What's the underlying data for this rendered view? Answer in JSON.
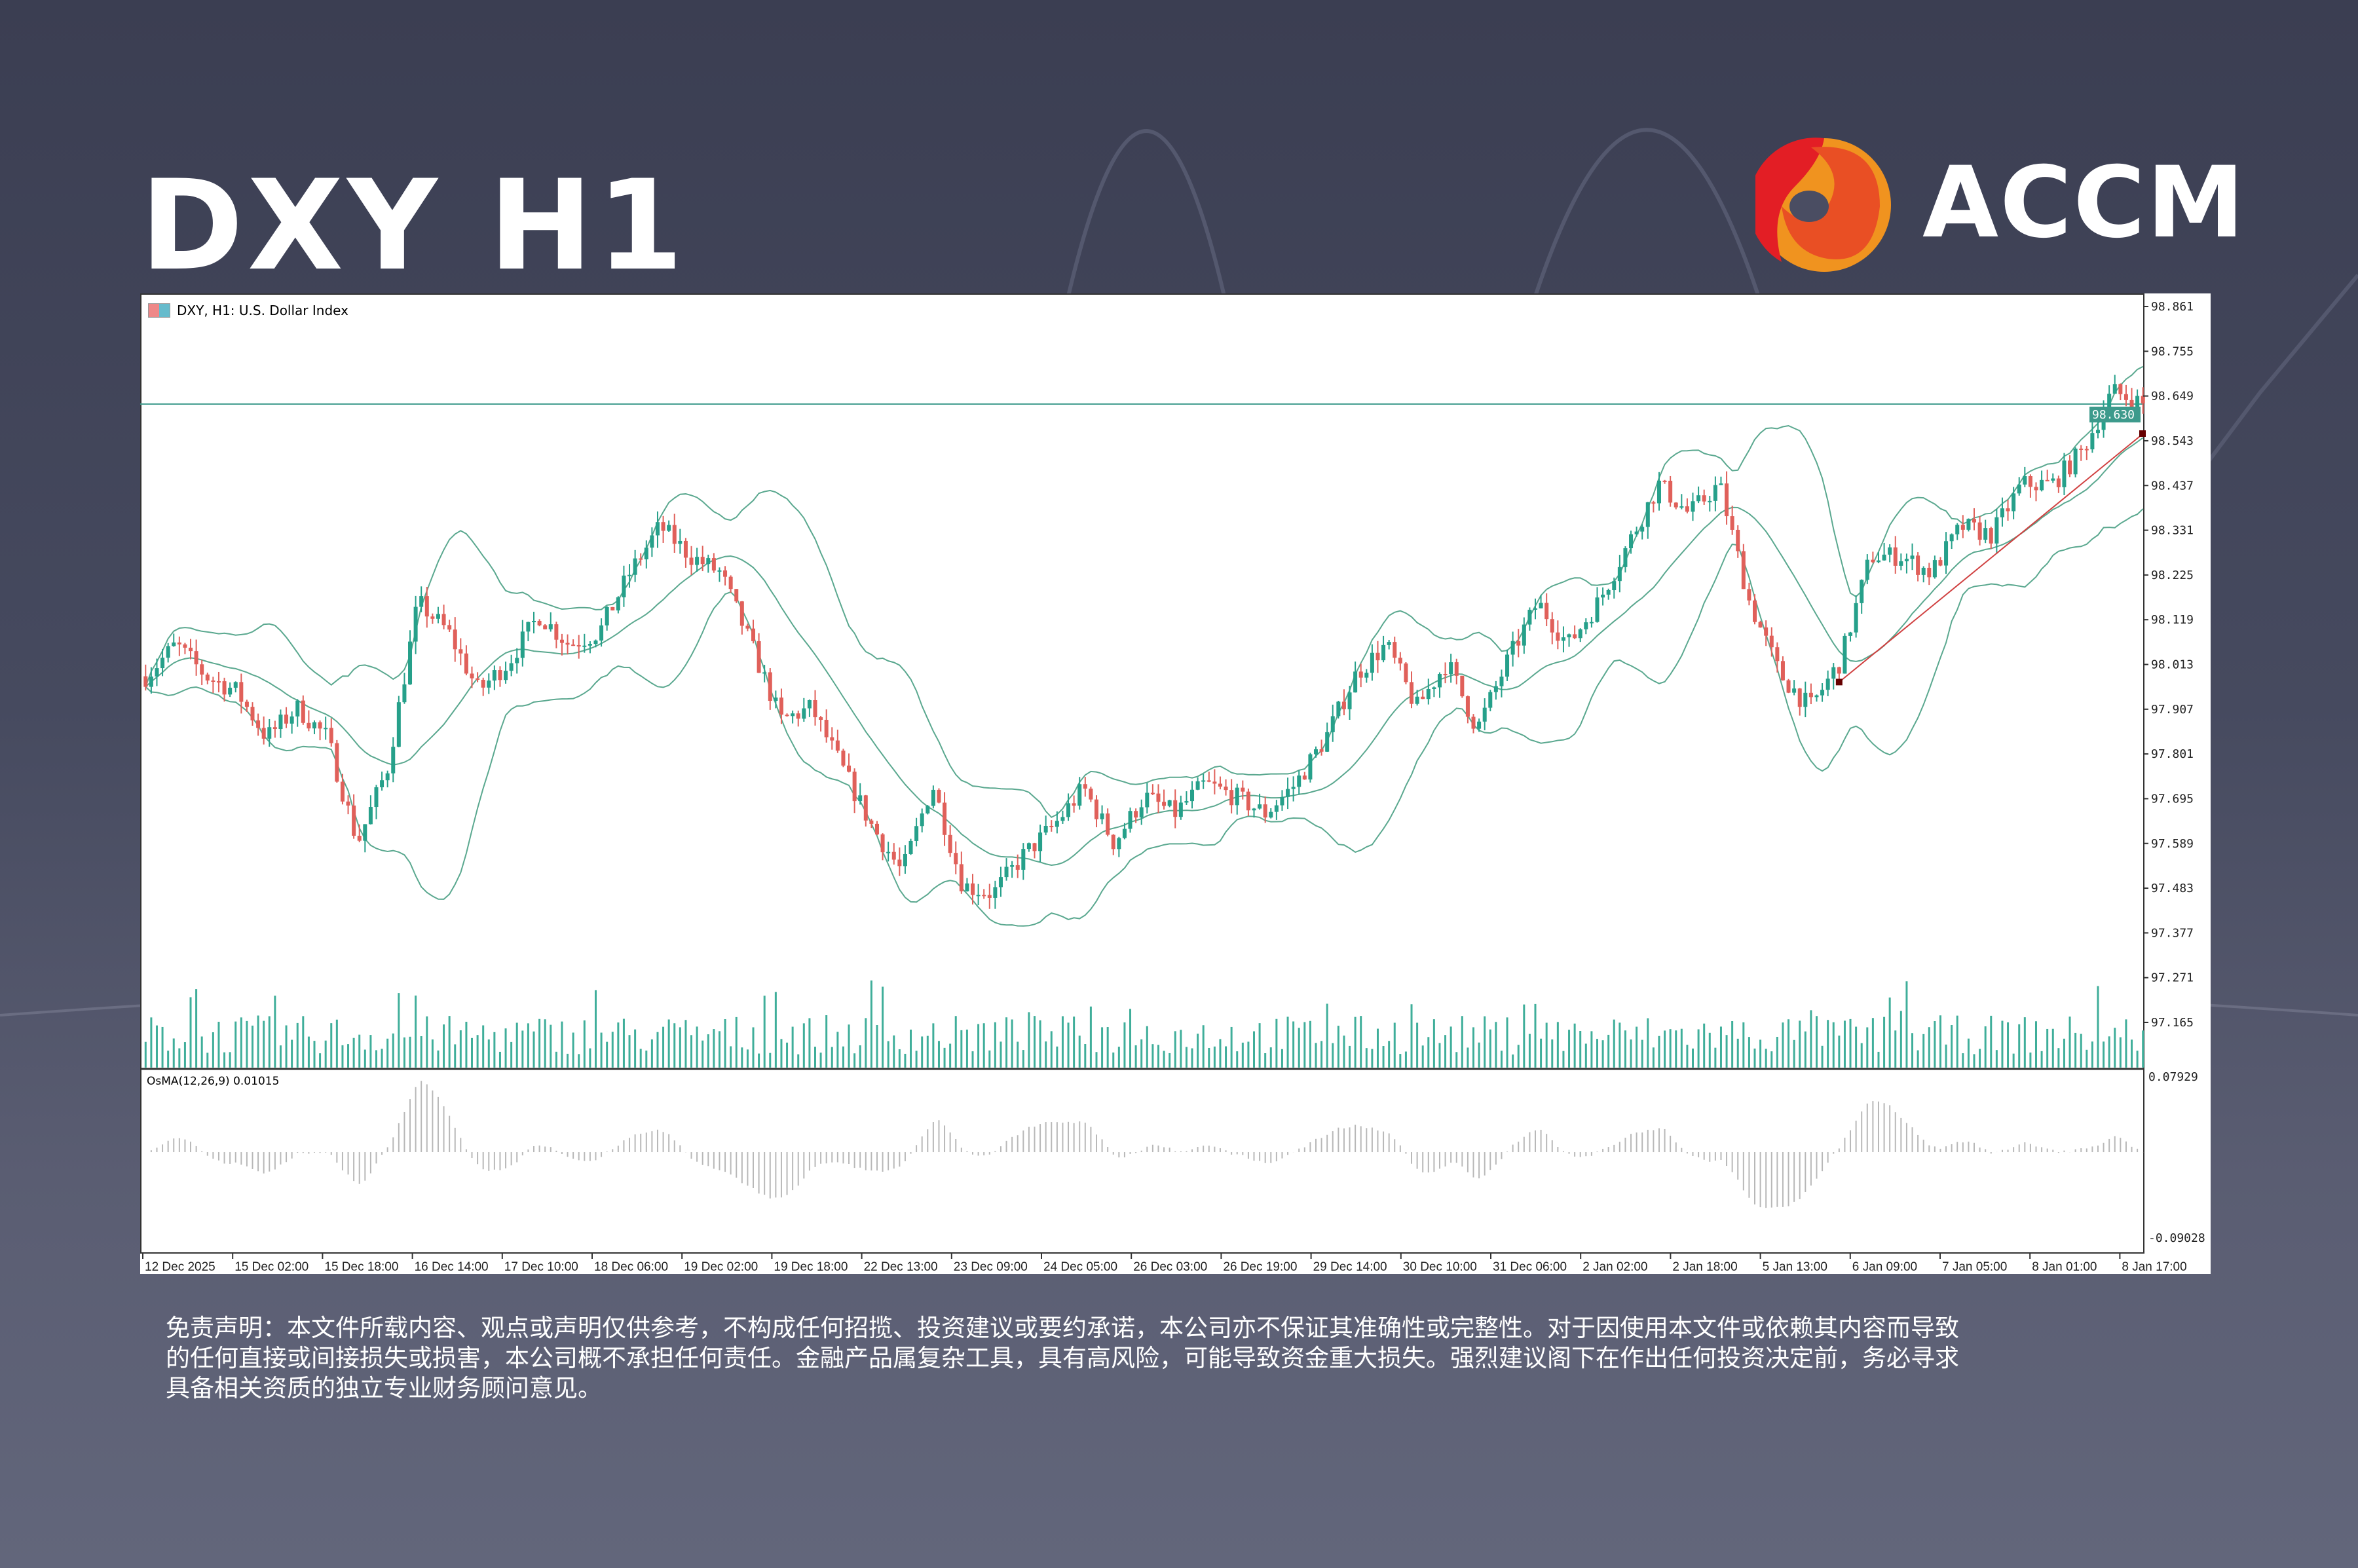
{
  "header": {
    "title": "DXY H1",
    "brand": "ACCM",
    "brand_colors": {
      "red": "#e31e25",
      "orange_red": "#e94f24",
      "orange": "#f0931f"
    }
  },
  "chart_window": {
    "caption": "DXY, H1:  U.S. Dollar Index",
    "icon": "chart-window-icon",
    "osma_label": "OsMA(12,26,9) 0.01015"
  },
  "chart_data": {
    "type": "candlestick",
    "title": "DXY, H1:  U.S. Dollar Index",
    "timeframe": "H1",
    "ylim": [
      97.165,
      98.861
    ],
    "y_ticks": [
      "98.861",
      "98.755",
      "98.649",
      "98.543",
      "98.437",
      "98.331",
      "98.225",
      "98.119",
      "98.013",
      "97.907",
      "97.801",
      "97.695",
      "97.589",
      "97.483",
      "97.377",
      "97.271",
      "97.165"
    ],
    "x_ticks": [
      "12 Dec 2025",
      "15 Dec 02:00",
      "15 Dec 18:00",
      "16 Dec 14:00",
      "17 Dec 10:00",
      "18 Dec 06:00",
      "19 Dec 02:00",
      "19 Dec 18:00",
      "22 Dec 13:00",
      "23 Dec 09:00",
      "24 Dec 05:00",
      "26 Dec 03:00",
      "26 Dec 19:00",
      "29 Dec 14:00",
      "30 Dec 10:00",
      "31 Dec 06:00",
      "2 Jan 02:00",
      "2 Jan 18:00",
      "5 Jan 13:00",
      "6 Jan 09:00",
      "7 Jan 05:00",
      "8 Jan 01:00",
      "8 Jan 17:00"
    ],
    "approx_closes": [
      97.985,
      98.06,
      97.985,
      97.95,
      97.84,
      97.91,
      97.84,
      97.59,
      97.77,
      98.16,
      98.09,
      97.95,
      98.02,
      98.13,
      98.06,
      98.09,
      98.23,
      98.34,
      98.27,
      98.23,
      98.06,
      97.88,
      97.91,
      97.77,
      97.63,
      97.52,
      97.73,
      97.49,
      97.47,
      97.56,
      97.63,
      97.72,
      97.59,
      97.7,
      97.66,
      97.73,
      97.7,
      97.66,
      97.73,
      97.84,
      97.99,
      98.06,
      97.91,
      98.02,
      97.86,
      98.02,
      98.16,
      98.06,
      98.16,
      98.3,
      98.44,
      98.37,
      98.44,
      98.16,
      97.99,
      97.91,
      98.02,
      98.27,
      98.27,
      98.23,
      98.34,
      98.32,
      98.44,
      98.44,
      98.52,
      98.66,
      98.63
    ],
    "current_price": "98.630",
    "overlays": [
      "Bollinger Bands",
      "Volume",
      "Trendline"
    ],
    "osma": {
      "name": "OsMA(12,26,9)",
      "value": "0.01015",
      "ylim": [
        -0.09028,
        0.07929
      ],
      "y_ticks": [
        "0.07929",
        "-0.09028"
      ]
    },
    "colors": {
      "bull": "#26a08a",
      "bear": "#e0605a",
      "bands": "#5aa88f",
      "price_line": "#3d9a8c",
      "trendline": "#d04040",
      "volume": "#3fae9a",
      "osma": "#b8b8b8"
    },
    "grid": false
  },
  "disclaimer": {
    "lines": [
      "免责声明：本文件所载内容、观点或声明仅供参考，不构成任何招揽、投资建议或要约承诺，本公司亦不保证其准确性或完整性。对于因使用本文件或依赖其内容而导致",
      "的任何直接或间接损失或损害，本公司概不承担任何责任。金融产品属复杂工具，具有高风险，可能导致资金重大损失。强烈建议阁下在作出任何投资决定前，务必寻求",
      "具备相关资质的独立专业财务顾问意见。"
    ]
  }
}
